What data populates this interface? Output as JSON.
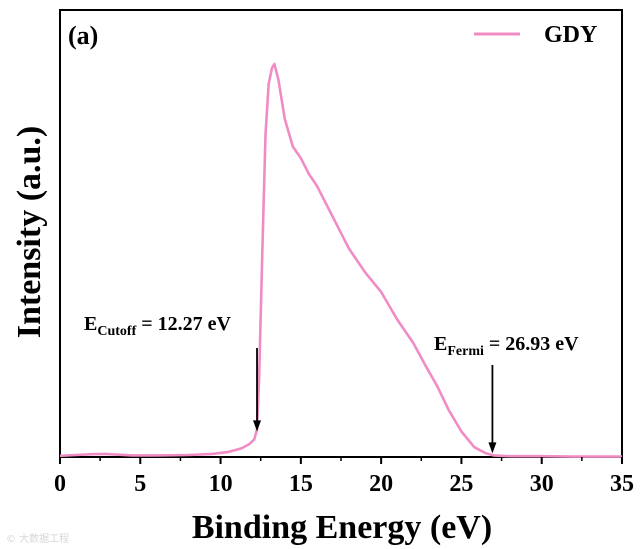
{
  "chart_data": {
    "type": "line",
    "panel_label": "(a)",
    "xlabel": "Binding Energy (eV)",
    "ylabel": "Intensity (a.u.)",
    "xlim": [
      0,
      35
    ],
    "ylim": [
      0,
      1.0
    ],
    "xticks": [
      0,
      5,
      10,
      15,
      20,
      25,
      30,
      35
    ],
    "legend": {
      "position": "top-right",
      "entries": [
        "GDY"
      ]
    },
    "series": [
      {
        "name": "GDY",
        "color": "#f08cc4",
        "x": [
          0,
          1,
          2,
          2.8,
          3.5,
          4.5,
          6,
          8,
          9.5,
          10.5,
          11.3,
          11.8,
          12.1,
          12.27,
          12.4,
          12.6,
          12.8,
          13.0,
          13.2,
          13.35,
          13.6,
          14,
          14.5,
          15.0,
          15.5,
          16,
          17,
          18,
          19,
          20,
          21,
          22,
          22.8,
          23.5,
          24.2,
          25,
          25.8,
          26.5,
          27,
          28,
          30,
          32,
          35
        ],
        "y": [
          0.003,
          0.005,
          0.007,
          0.008,
          0.006,
          0.004,
          0.004,
          0.005,
          0.008,
          0.013,
          0.022,
          0.033,
          0.045,
          0.07,
          0.2,
          0.52,
          0.82,
          0.95,
          0.99,
          1.0,
          0.96,
          0.86,
          0.79,
          0.76,
          0.72,
          0.69,
          0.61,
          0.53,
          0.47,
          0.42,
          0.35,
          0.29,
          0.23,
          0.18,
          0.12,
          0.065,
          0.025,
          0.01,
          0.004,
          0.002,
          0.002,
          0.001,
          0.001
        ]
      }
    ],
    "annotations": [
      {
        "label_main": "E",
        "label_sub": "Cutoff",
        "label_value": " = 12.27 eV",
        "x": 12.27,
        "y": 0.06
      },
      {
        "label_main": "E",
        "label_sub": "Fermi",
        "label_value": " = 26.93 eV",
        "x": 26.93,
        "y": 0.004
      }
    ]
  },
  "watermark": "© 大数据工程"
}
